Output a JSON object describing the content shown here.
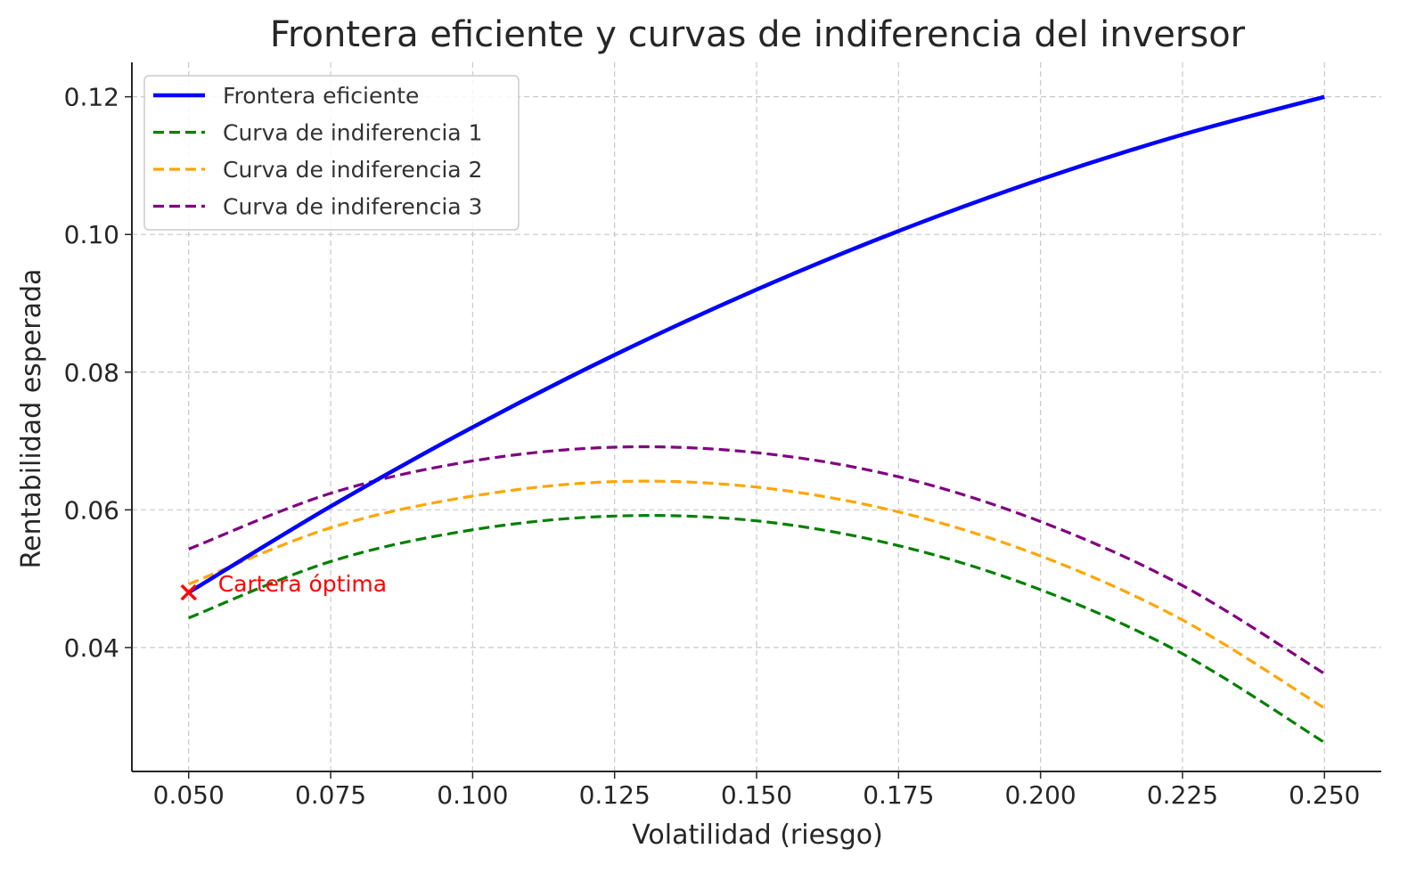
{
  "chart_data": {
    "type": "line",
    "title": "Frontera eficiente y curvas de indiferencia del inversor",
    "xlabel": "Volatilidad (riesgo)",
    "ylabel": "Rentabilidad esperada",
    "xlim": [
      0.04,
      0.26
    ],
    "ylim": [
      0.022,
      0.125
    ],
    "xticks": [
      0.05,
      0.075,
      0.1,
      0.125,
      0.15,
      0.175,
      0.2,
      0.225,
      0.25
    ],
    "xtick_labels": [
      "0.050",
      "0.075",
      "0.100",
      "0.125",
      "0.150",
      "0.175",
      "0.200",
      "0.225",
      "0.250"
    ],
    "yticks": [
      0.04,
      0.06,
      0.08,
      0.1,
      0.12
    ],
    "ytick_labels": [
      "0.04",
      "0.06",
      "0.08",
      "0.10",
      "0.12"
    ],
    "grid": true,
    "legend_position": "top-left",
    "x": [
      0.05,
      0.075,
      0.1,
      0.125,
      0.15,
      0.175,
      0.2,
      0.225,
      0.25
    ],
    "series": [
      {
        "name": "Frontera eficiente",
        "color": "#0000ff",
        "style": "solid",
        "values": [
          0.048,
          0.0605,
          0.072,
          0.0825,
          0.092,
          0.1005,
          0.108,
          0.1145,
          0.12
        ]
      },
      {
        "name": "Curva de indiferencia 1",
        "color": "#008000",
        "style": "dashed",
        "values": [
          0.0443,
          0.0525,
          0.0571,
          0.0591,
          0.0584,
          0.0548,
          0.0484,
          0.0391,
          0.0262
        ]
      },
      {
        "name": "Curva de indiferencia 2",
        "color": "#ffa500",
        "style": "dashed",
        "values": [
          0.0492,
          0.0574,
          0.062,
          0.0641,
          0.0633,
          0.0597,
          0.0533,
          0.044,
          0.0312
        ]
      },
      {
        "name": "Curva de indiferencia 3",
        "color": "#800080",
        "style": "dashed",
        "values": [
          0.0543,
          0.0624,
          0.0671,
          0.0691,
          0.0683,
          0.0648,
          0.0583,
          0.049,
          0.0362
        ]
      }
    ],
    "optimal_point": {
      "x": 0.05,
      "y": 0.048,
      "marker": "x",
      "color": "#ff0000",
      "label": "Cartera óptima"
    }
  }
}
